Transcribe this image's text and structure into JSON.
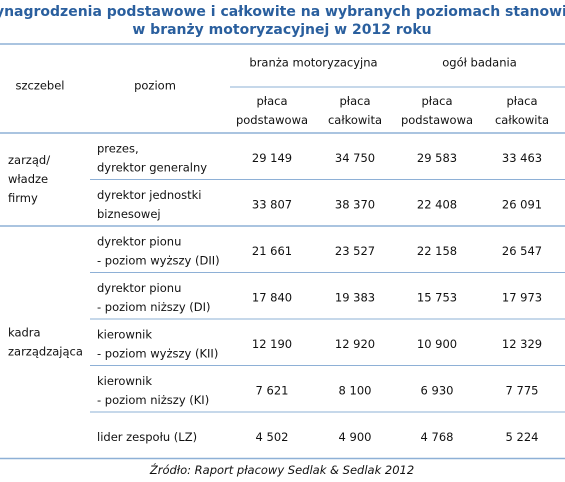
{
  "title": [
    "Wynagrodzenia podstawowe i całkowite na wybranych poziomach stanowisk",
    "w branży motoryzacyjnej w 2012 roku"
  ],
  "header": {
    "level": "szczebel",
    "position": "poziom",
    "groups": [
      "branża motoryzacyjna",
      "ogół badania"
    ],
    "columns": [
      [
        "płaca",
        "podstawowa"
      ],
      [
        "płaca",
        "całkowita"
      ],
      [
        "płaca",
        "podstawowa"
      ],
      [
        "płaca",
        "całkowita"
      ]
    ]
  },
  "sections": [
    {
      "label": [
        "zarząd/",
        "władze",
        "firmy"
      ],
      "rows": [
        {
          "position": [
            "prezes,",
            "dyrektor generalny"
          ],
          "values": [
            "29 149",
            "34 750",
            "29 583",
            "33 463"
          ]
        },
        {
          "position": [
            "dyrektor jednostki",
            "biznesowej"
          ],
          "values": [
            "33 807",
            "38 370",
            "22 408",
            "26 091"
          ]
        }
      ]
    },
    {
      "label": [
        "kadra",
        "zarządzająca"
      ],
      "rows": [
        {
          "position": [
            "dyrektor pionu",
            "- poziom wyższy  (DII)"
          ],
          "values": [
            "21 661",
            "23 527",
            "22 158",
            "26 547"
          ]
        },
        {
          "position": [
            "dyrektor pionu",
            "- poziom niższy  (DI)"
          ],
          "values": [
            "17 840",
            "19 383",
            "15 753",
            "17 973"
          ]
        },
        {
          "position": [
            "kierownik",
            "- poziom wyższy  (KII)"
          ],
          "values": [
            "12 190",
            "12 920",
            "10 900",
            "12 329"
          ]
        },
        {
          "position": [
            "kierownik",
            "- poziom niższy  (KI)"
          ],
          "values": [
            "7 621",
            "8 100",
            "6 930",
            "7 775"
          ]
        },
        {
          "position": [
            "lider zespołu (LZ)"
          ],
          "values": [
            "4 502",
            "4 900",
            "4 768",
            "5 224"
          ]
        }
      ]
    }
  ],
  "source": "Źródło: Raport płacowy Sedlak & Sedlak 2012"
}
